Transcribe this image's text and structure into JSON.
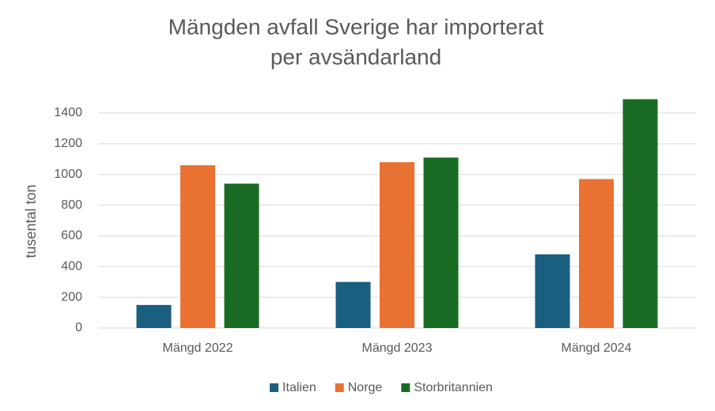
{
  "chart_data": {
    "type": "bar",
    "title": [
      "Mängden avfall Sverige har importerat",
      "per avsändarland"
    ],
    "y_label": "tusental ton",
    "categories": [
      "Mängd 2022",
      "Mängd 2023",
      "Mängd 2024"
    ],
    "series": [
      {
        "name": "Italien",
        "color": "#1a5e80",
        "values": [
          150,
          300,
          480
        ]
      },
      {
        "name": "Norge",
        "color": "#e97132",
        "values": [
          1060,
          1080,
          970
        ]
      },
      {
        "name": "Storbritannien",
        "color": "#196b24",
        "values": [
          940,
          1110,
          1490
        ]
      }
    ],
    "ylim": [
      0,
      1500
    ],
    "yticks": [
      0,
      200,
      400,
      600,
      800,
      1000,
      1200,
      1400
    ],
    "grid": true,
    "legend": "bottom"
  }
}
